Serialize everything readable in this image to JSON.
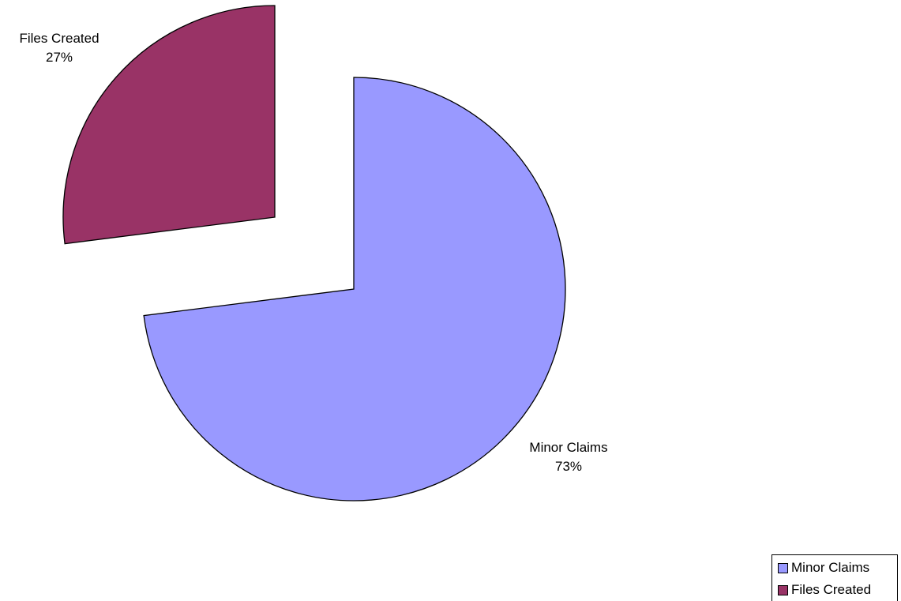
{
  "chart_data": {
    "type": "pie",
    "title": "",
    "start_angle_deg": 0,
    "direction": "clockwise",
    "exploded": true,
    "legend_position": "bottom-right",
    "slices": [
      {
        "name": "Minor Claims",
        "value": 73,
        "label_pct": "73%",
        "color": "#9999ff"
      },
      {
        "name": "Files Created",
        "value": 27,
        "label_pct": "27%",
        "color": "#993366"
      }
    ],
    "legend": [
      {
        "label": "Minor Claims",
        "color": "#9999ff"
      },
      {
        "label": "Files Created",
        "color": "#993366"
      }
    ]
  }
}
